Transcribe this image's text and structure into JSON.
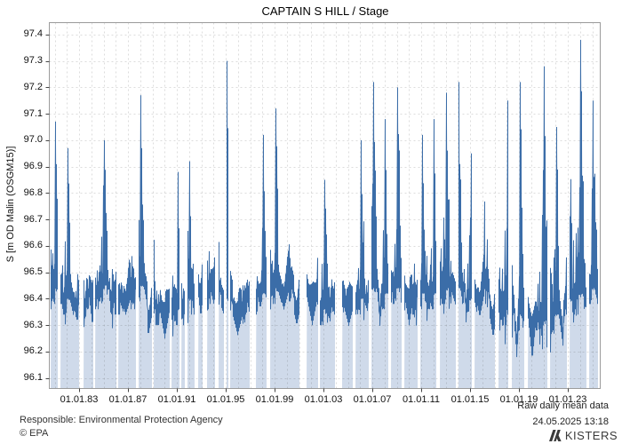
{
  "chart_data": {
    "type": "area",
    "title": "CAPTAIN S HILL / Stage",
    "ylabel": "S [m OD Malin (OSGM15)]",
    "xlabel": "",
    "footer_note": "Raw daily mean data",
    "ylim": [
      96.06,
      97.445
    ],
    "x_domain_years": [
      1980.56,
      2025.65
    ],
    "data_start_year": 1980.67,
    "data_end_year": 2025.38,
    "grid": "dashed, 1 line per year (x) and per 0.1 m (y)",
    "legend_position": "none",
    "yticks": [
      "96.1",
      "96.2",
      "96.3",
      "96.4",
      "96.5",
      "96.6",
      "96.7",
      "96.8",
      "96.9",
      "97.0",
      "97.1",
      "97.2",
      "97.3",
      "97.4"
    ],
    "ytick_values": [
      96.1,
      96.2,
      96.3,
      96.4,
      96.5,
      96.6,
      96.7,
      96.8,
      96.9,
      97.0,
      97.1,
      97.2,
      97.3,
      97.4
    ],
    "xticks": [
      {
        "year": 1983,
        "label": "01.01.83"
      },
      {
        "year": 1987,
        "label": "01.01.87"
      },
      {
        "year": 1991,
        "label": "01.01.91"
      },
      {
        "year": 1995,
        "label": "01.01.95"
      },
      {
        "year": 1999,
        "label": "01.01.99"
      },
      {
        "year": 2003,
        "label": "01.01.03"
      },
      {
        "year": 2007,
        "label": "01.01.07"
      },
      {
        "year": 2011,
        "label": "01.01.11"
      },
      {
        "year": 2015,
        "label": "01.01.15"
      },
      {
        "year": 2019,
        "label": "01.01.19"
      },
      {
        "year": 2023,
        "label": "01.01.23"
      }
    ],
    "series_note": "Daily mean stage 1980-2025; per water year: [winter peak, typical summer level, summer minimum] in m OD Malin, read from plot envelope",
    "years": {
      "1980": [
        96.8,
        96.42,
        96.3
      ],
      "1981": [
        97.07,
        96.44,
        96.3
      ],
      "1982": [
        96.97,
        96.4,
        96.28
      ],
      "1983": [
        96.62,
        96.38,
        96.26
      ],
      "1984": [
        97.08,
        96.42,
        96.28
      ],
      "1985": [
        97.0,
        96.45,
        96.33
      ],
      "1986": [
        96.78,
        96.4,
        96.27
      ],
      "1987": [
        96.93,
        96.42,
        96.3
      ],
      "1988": [
        97.17,
        96.45,
        96.32
      ],
      "1989": [
        96.72,
        96.36,
        96.18
      ],
      "1990": [
        97.12,
        96.38,
        96.2
      ],
      "1991": [
        96.88,
        96.36,
        96.24
      ],
      "1992": [
        96.92,
        96.4,
        96.28
      ],
      "1993": [
        96.98,
        96.42,
        96.3
      ],
      "1994": [
        97.18,
        96.44,
        96.32
      ],
      "1995": [
        97.3,
        96.4,
        96.26
      ],
      "1996": [
        96.65,
        96.36,
        96.25
      ],
      "1997": [
        96.88,
        96.4,
        96.3
      ],
      "1998": [
        97.02,
        96.42,
        96.3
      ],
      "1999": [
        97.12,
        96.44,
        96.32
      ],
      "2000": [
        97.22,
        96.45,
        96.33
      ],
      "2001": [
        96.92,
        96.4,
        96.28
      ],
      "2002": [
        97.1,
        96.42,
        96.3
      ],
      "2003": [
        96.85,
        96.36,
        96.22
      ],
      "2004": [
        96.92,
        96.4,
        96.28
      ],
      "2005": [
        96.88,
        96.38,
        96.28
      ],
      "2006": [
        97.0,
        96.4,
        96.3
      ],
      "2007": [
        97.22,
        96.44,
        96.32
      ],
      "2008": [
        97.08,
        96.42,
        96.3
      ],
      "2009": [
        97.2,
        96.44,
        96.32
      ],
      "2010": [
        96.95,
        96.4,
        96.26
      ],
      "2011": [
        97.02,
        96.42,
        96.3
      ],
      "2012": [
        97.08,
        96.42,
        96.3
      ],
      "2013": [
        97.18,
        96.44,
        96.32
      ],
      "2014": [
        97.22,
        96.44,
        96.32
      ],
      "2015": [
        96.95,
        96.4,
        96.28
      ],
      "2016": [
        97.25,
        96.44,
        96.32
      ],
      "2017": [
        96.88,
        96.38,
        96.26
      ],
      "2018": [
        97.15,
        96.36,
        96.2
      ],
      "2019": [
        97.22,
        96.34,
        96.15
      ],
      "2020": [
        97.12,
        96.34,
        96.17
      ],
      "2021": [
        97.28,
        96.32,
        96.12
      ],
      "2022": [
        97.05,
        96.34,
        96.16
      ],
      "2023": [
        97.3,
        96.4,
        96.28
      ],
      "2024": [
        97.38,
        96.42,
        96.3
      ],
      "2025": [
        97.15,
        96.44,
        96.38
      ]
    },
    "gaps": [
      [
        1981.25,
        1981.4
      ],
      [
        1982.93,
        1983.3
      ],
      [
        1984.1,
        1984.24
      ],
      [
        1986.0,
        1986.13
      ],
      [
        1987.6,
        1987.8
      ],
      [
        1988.9,
        1989.1
      ],
      [
        1990.35,
        1990.56
      ],
      [
        1991.15,
        1991.3
      ],
      [
        1991.6,
        1991.8
      ],
      [
        1992.4,
        1992.7
      ],
      [
        1993.1,
        1993.4
      ],
      [
        1994.1,
        1994.35
      ],
      [
        1994.85,
        1995.0
      ],
      [
        1995.15,
        1995.35
      ],
      [
        1996.96,
        1997.4
      ],
      [
        1998.3,
        1998.6
      ],
      [
        2001.0,
        2001.6
      ],
      [
        2002.5,
        2002.7
      ],
      [
        2003.9,
        2004.5
      ],
      [
        2005.4,
        2005.6
      ],
      [
        2006.7,
        2006.9
      ],
      [
        2008.3,
        2008.5
      ],
      [
        2009.4,
        2009.6
      ],
      [
        2010.7,
        2010.9
      ],
      [
        2012.2,
        2012.5
      ],
      [
        2013.8,
        2014.0
      ],
      [
        2015.1,
        2015.3
      ],
      [
        2017.0,
        2017.3
      ],
      [
        2018.1,
        2018.35
      ],
      [
        2019.4,
        2019.7
      ],
      [
        2021.3,
        2021.5
      ],
      [
        2022.9,
        2023.1
      ],
      [
        2024.5,
        2024.7
      ]
    ],
    "colors": {
      "line": "#3b6da8",
      "fill": "#cfdaea",
      "grid": "#d8d8d8",
      "frame": "#9b9b9b"
    }
  },
  "footer": {
    "responsible": "Responsible: Environmental Protection Agency",
    "copyright": "© EPA",
    "timestamp": "24.05.2025 13:18",
    "brand": "KISTERS"
  }
}
